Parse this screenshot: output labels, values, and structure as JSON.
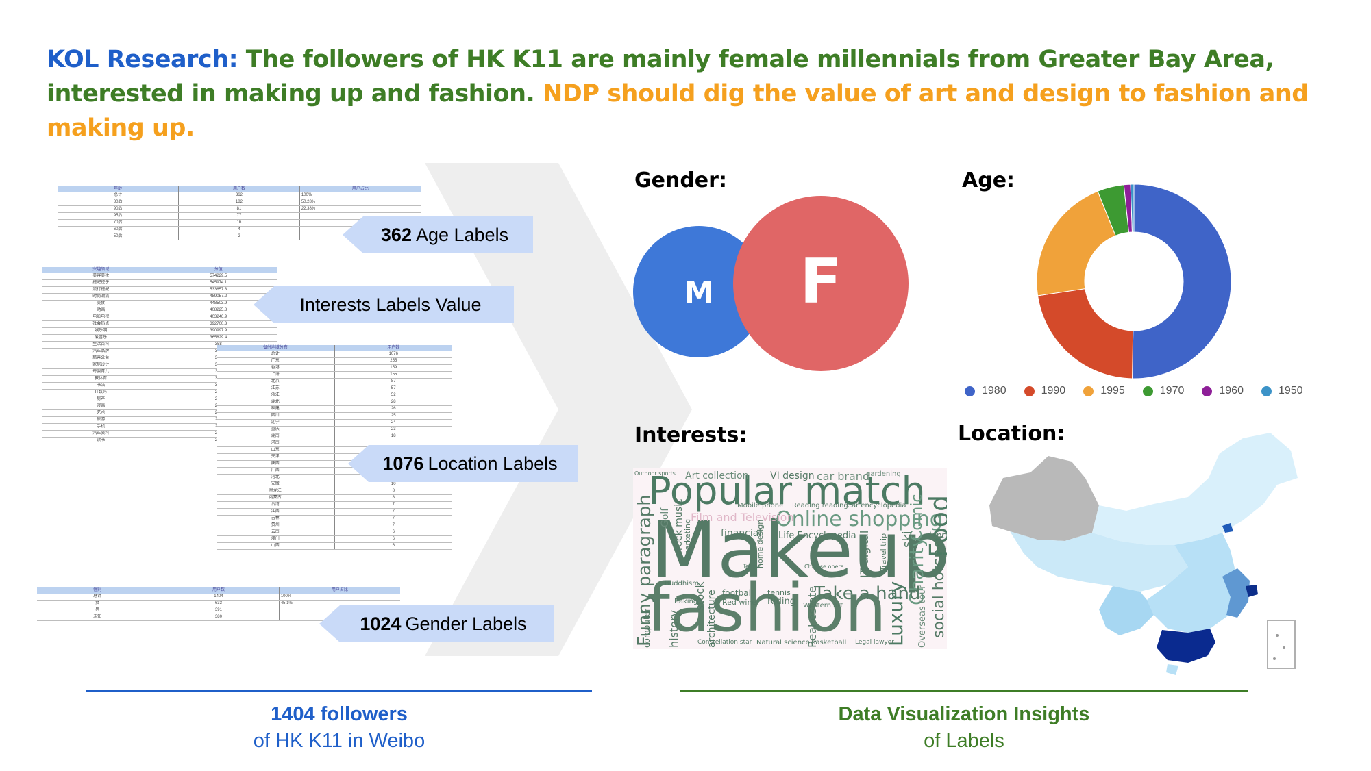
{
  "headline": {
    "part1": "KOL Research:",
    "part2": " The followers of HK K11 are mainly female millennials from Greater Bay Area, interested in making up and fashion.",
    "part3": " NDP should dig the value of art and design to fashion and making up."
  },
  "colors": {
    "headline_blue": "#1f5fc9",
    "headline_green": "#3e7d26",
    "headline_orange": "#f5a01e",
    "male": "#3e78d8",
    "female": "#e06666",
    "callout": "#c9daf8"
  },
  "callouts": {
    "age": {
      "count": "362",
      "text": " Age Labels"
    },
    "interests": {
      "text": "Interests Labels Value"
    },
    "location": {
      "count": "1076",
      "text": " Location Labels"
    },
    "gender": {
      "count": "1024",
      "text": " Gender Labels"
    }
  },
  "sheets": {
    "age": {
      "headers": [
        "年龄",
        "用户数",
        "用户占比"
      ],
      "rows": [
        [
          "总计",
          "362",
          "100%"
        ],
        [
          "80后",
          "182",
          "50.28%"
        ],
        [
          "90后",
          "81",
          "22.38%"
        ],
        [
          "95后",
          "77",
          ""
        ],
        [
          "70后",
          "16",
          ""
        ],
        [
          "60后",
          "4",
          ""
        ],
        [
          "50后",
          "2",
          ""
        ]
      ]
    },
    "interests": {
      "headers": [
        "兴趣领域",
        "分值"
      ],
      "rows": [
        [
          "美容美妆",
          "574229.5"
        ],
        [
          "搭配控子",
          "545974.1"
        ],
        [
          "流行搭配",
          "533657.3"
        ],
        [
          "时尚潮流",
          "489057.2"
        ],
        [
          "美食",
          "448503.9"
        ],
        [
          "动画",
          "408225.8"
        ],
        [
          "电影电视",
          "403246.9"
        ],
        [
          "社会热点",
          "392700.3"
        ],
        [
          "娱乐明",
          "390997.9"
        ],
        [
          "爱音乐",
          "365829.4"
        ],
        [
          "生活百科",
          "358"
        ],
        [
          "汽车品牌",
          "331"
        ],
        [
          "慈善公益",
          "324"
        ],
        [
          "家居设计",
          "317"
        ],
        [
          "母婴育儿",
          "311"
        ],
        [
          "教体育",
          "309"
        ],
        [
          "书法",
          "304"
        ],
        [
          "IT数码",
          "293"
        ],
        [
          "房产",
          "278"
        ],
        [
          "漫画",
          "277"
        ],
        [
          "艺术",
          "273"
        ],
        [
          "旅游",
          "269"
        ],
        [
          "手机",
          "267"
        ],
        [
          "汽车资料",
          "267"
        ],
        [
          "读书",
          "264"
        ]
      ]
    },
    "location": {
      "headers": [
        "省份地域分布",
        "用户数"
      ],
      "rows": [
        [
          "总计",
          "1076"
        ],
        [
          "广东",
          "255"
        ],
        [
          "香港",
          "159"
        ],
        [
          "上海",
          "155"
        ],
        [
          "北京",
          "87"
        ],
        [
          "江苏",
          "57"
        ],
        [
          "浙江",
          "52"
        ],
        [
          "湖北",
          "28"
        ],
        [
          "福建",
          "26"
        ],
        [
          "四川",
          "25"
        ],
        [
          "辽宁",
          "24"
        ],
        [
          "重庆",
          "23"
        ],
        [
          "湖南",
          "18"
        ],
        [
          "河南",
          ""
        ],
        [
          "山东",
          ""
        ],
        [
          "天津",
          ""
        ],
        [
          "陕西",
          ""
        ],
        [
          "广西",
          "12"
        ],
        [
          "河北",
          "11"
        ],
        [
          "安徽",
          "10"
        ],
        [
          "黑龙江",
          "8"
        ],
        [
          "内蒙古",
          "8"
        ],
        [
          "台湾",
          "7"
        ],
        [
          "江西",
          "7"
        ],
        [
          "吉林",
          "7"
        ],
        [
          "贵州",
          "7"
        ],
        [
          "云南",
          "6"
        ],
        [
          "澳门",
          "6"
        ],
        [
          "山西",
          "6"
        ]
      ]
    },
    "gender": {
      "headers": [
        "性别",
        "用户数",
        "用户占比"
      ],
      "rows": [
        [
          "总计",
          "1404",
          "100%"
        ],
        [
          "女",
          "633",
          "45.1%"
        ],
        [
          "男",
          "391",
          ""
        ],
        [
          "未知",
          "380",
          ""
        ]
      ]
    }
  },
  "sections": {
    "gender": "Gender:",
    "age": "Age:",
    "interests": "Interests:",
    "location": "Location:"
  },
  "gender_chart": {
    "male_label": "M",
    "female_label": "F"
  },
  "chart_data": {
    "type": "pie",
    "subtype": "donut",
    "categories": [
      "1980",
      "1990",
      "1995",
      "1970",
      "1960",
      "1950"
    ],
    "values": [
      182,
      81,
      77,
      16,
      4,
      2
    ],
    "colors": [
      "#3f64c8",
      "#d44a2a",
      "#f0a23a",
      "#3d9a32",
      "#8e1f98",
      "#3c93c8"
    ],
    "legend": "bottom"
  },
  "wordcloud": {
    "words": [
      "Popular match",
      "Makeup",
      "fashion",
      "Online shopping",
      "Funny paragraph",
      "Food",
      "Comic",
      "Charity",
      "social hotspot",
      "Take a hand",
      "Luxury",
      "Real estate",
      "IT digital",
      "Art collection",
      "VI design",
      "car brand",
      "gardening",
      "Film and Television",
      "financial",
      "Life Encyclopedia",
      "Mobile phone",
      "Reading reading",
      "Car encyclopedia",
      "rock music",
      "Golf",
      "marketing",
      "stock",
      "history",
      "computer",
      "architecture",
      "football",
      "tennis",
      "Riding",
      "Red wine",
      "Baking",
      "Buddhism",
      "ski",
      "dance",
      "Travel trip",
      "Overseas tour",
      "basketball",
      "Legal lawyer",
      "Constellation star",
      "Natural science",
      "home design",
      "Western art",
      "Chinese opera",
      "Outdoor sports",
      "Terror"
    ]
  },
  "footer": {
    "left_title": "1404 followers",
    "left_sub": "of HK K11 in Weibo",
    "right_title": "Data Visualization Insights",
    "right_sub": "of Labels"
  }
}
